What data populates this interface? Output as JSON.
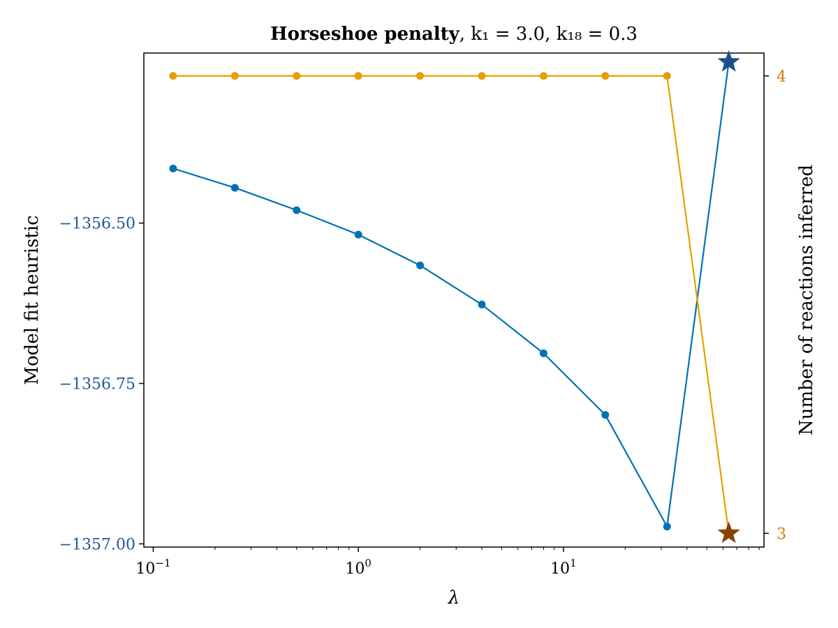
{
  "chart_data": {
    "type": "line",
    "title": {
      "bold": "Horseshoe penalty",
      "rest": ", k₁ = 3.0, k₁₈ = 0.3"
    },
    "xlabel": "λ",
    "xscale": "log",
    "xlim": [
      0.09,
      95
    ],
    "x_ticks": [
      {
        "value": 0.1,
        "base": "10",
        "exp": "−1"
      },
      {
        "value": 1,
        "base": "10",
        "exp": "0"
      },
      {
        "value": 10,
        "base": "10",
        "exp": "1"
      }
    ],
    "x": [
      0.125,
      0.25,
      0.5,
      1,
      2,
      4,
      8,
      16,
      32
    ],
    "left_axis": {
      "label": "Model fit heuristic",
      "color": "#1f5a99",
      "ylim": [
        -1357.005,
        -1356.235
      ],
      "ticks": [
        {
          "value": -1356.5,
          "label": "−1356.50"
        },
        {
          "value": -1356.75,
          "label": "−1356.75"
        },
        {
          "value": -1357.0,
          "label": "−1357.00"
        }
      ]
    },
    "right_axis": {
      "label": "Number of reactions inferred",
      "color": "#d47a00",
      "ylim": [
        2.97,
        4.05
      ],
      "ticks": [
        {
          "value": 3,
          "label": "3"
        },
        {
          "value": 4,
          "label": "4"
        }
      ]
    },
    "series": [
      {
        "axis": "left",
        "color": "#0072b2",
        "values": [
          -1356.415,
          -1356.445,
          -1356.48,
          -1356.518,
          -1356.566,
          -1356.627,
          -1356.703,
          -1356.799,
          -1356.973
        ]
      },
      {
        "axis": "right",
        "color": "#e69f00",
        "values": [
          4,
          4,
          4,
          4,
          4,
          4,
          4,
          4,
          4
        ]
      }
    ],
    "stars": [
      {
        "axis": "left",
        "x": 64,
        "y": -1356.249,
        "color": "#1a4f8c"
      },
      {
        "axis": "right",
        "x": 64,
        "y": 3,
        "color": "#8a4200"
      }
    ],
    "grid": false,
    "legend": "none"
  }
}
